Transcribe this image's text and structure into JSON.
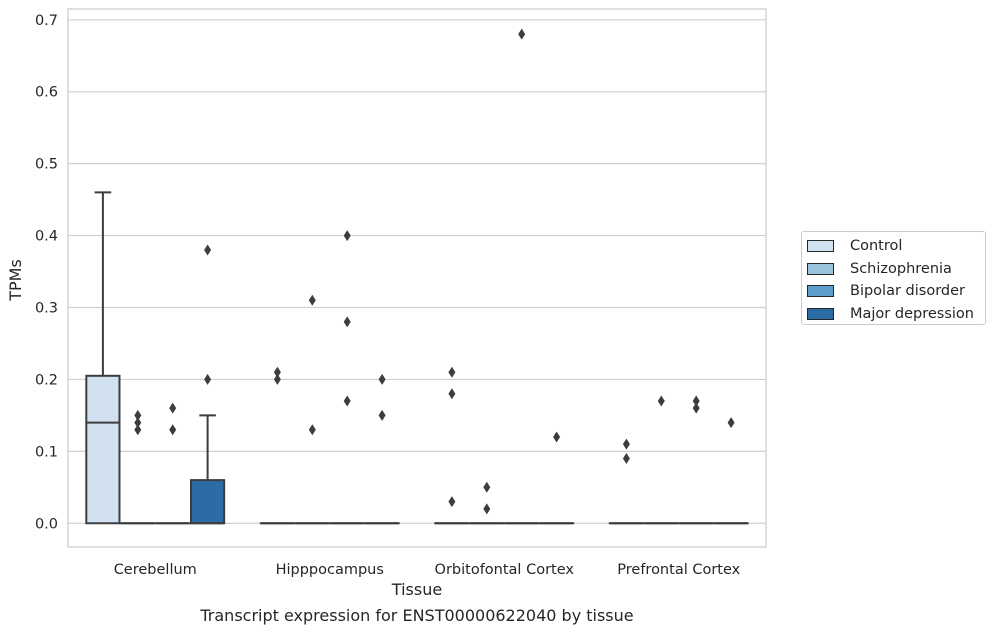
{
  "chart_data": {
    "type": "box",
    "xlabel": "Tissue",
    "ylabel": "TPMs",
    "ylim": [
      -0.033,
      0.715
    ],
    "yticks": [
      "0.0",
      "0.1",
      "0.2",
      "0.3",
      "0.4",
      "0.5",
      "0.6",
      "0.7"
    ],
    "categories": [
      "Cerebellum",
      "Hipppocampus",
      "Orbitofontal Cortex",
      "Prefrontal Cortex"
    ],
    "grid": true,
    "legend_position": "right",
    "series": [
      {
        "name": "Control",
        "color": "#d1e1f0",
        "boxes": [
          {
            "q1": 0,
            "median": 0.14,
            "q3": 0.205,
            "whisker_low": 0,
            "whisker_high": 0.46,
            "outliers": []
          },
          {
            "q1": 0,
            "median": 0,
            "q3": 0,
            "whisker_low": 0,
            "whisker_high": 0,
            "outliers": [
              0.21,
              0.2
            ]
          },
          {
            "q1": 0,
            "median": 0,
            "q3": 0,
            "whisker_low": 0,
            "whisker_high": 0,
            "outliers": [
              0.21,
              0.18,
              0.03
            ]
          },
          {
            "q1": 0,
            "median": 0,
            "q3": 0,
            "whisker_low": 0,
            "whisker_high": 0,
            "outliers": [
              0.11,
              0.09
            ]
          }
        ]
      },
      {
        "name": "Schizophrenia",
        "color": "#9ac3dd",
        "boxes": [
          {
            "q1": 0,
            "median": 0,
            "q3": 0,
            "whisker_low": 0,
            "whisker_high": 0,
            "outliers": [
              0.15,
              0.14,
              0.13
            ]
          },
          {
            "q1": 0,
            "median": 0,
            "q3": 0,
            "whisker_low": 0,
            "whisker_high": 0,
            "outliers": [
              0.31,
              0.13
            ]
          },
          {
            "q1": 0,
            "median": 0,
            "q3": 0,
            "whisker_low": 0,
            "whisker_high": 0,
            "outliers": [
              0.05,
              0.02
            ]
          },
          {
            "q1": 0,
            "median": 0,
            "q3": 0,
            "whisker_low": 0,
            "whisker_high": 0,
            "outliers": [
              0.17
            ]
          }
        ]
      },
      {
        "name": "Bipolar disorder",
        "color": "#5c9fcb",
        "boxes": [
          {
            "q1": 0,
            "median": 0,
            "q3": 0,
            "whisker_low": 0,
            "whisker_high": 0,
            "outliers": [
              0.16,
              0.13
            ]
          },
          {
            "q1": 0,
            "median": 0,
            "q3": 0,
            "whisker_low": 0,
            "whisker_high": 0,
            "outliers": [
              0.4,
              0.28,
              0.17
            ]
          },
          {
            "q1": 0,
            "median": 0,
            "q3": 0,
            "whisker_low": 0,
            "whisker_high": 0,
            "outliers": [
              0.68
            ]
          },
          {
            "q1": 0,
            "median": 0,
            "q3": 0,
            "whisker_low": 0,
            "whisker_high": 0,
            "outliers": [
              0.17,
              0.16
            ]
          }
        ]
      },
      {
        "name": "Major depression",
        "color": "#2b6ca6",
        "boxes": [
          {
            "q1": 0,
            "median": 0,
            "q3": 0.06,
            "whisker_low": 0,
            "whisker_high": 0.15,
            "outliers": [
              0.38,
              0.2
            ]
          },
          {
            "q1": 0,
            "median": 0,
            "q3": 0,
            "whisker_low": 0,
            "whisker_high": 0,
            "outliers": [
              0.2,
              0.15
            ]
          },
          {
            "q1": 0,
            "median": 0,
            "q3": 0,
            "whisker_low": 0,
            "whisker_high": 0,
            "outliers": [
              0.12
            ]
          },
          {
            "q1": 0,
            "median": 0,
            "q3": 0,
            "whisker_low": 0,
            "whisker_high": 0,
            "outliers": [
              0.14
            ]
          }
        ]
      }
    ]
  },
  "caption": "Transcript expression for ENST00000622040 by tissue"
}
